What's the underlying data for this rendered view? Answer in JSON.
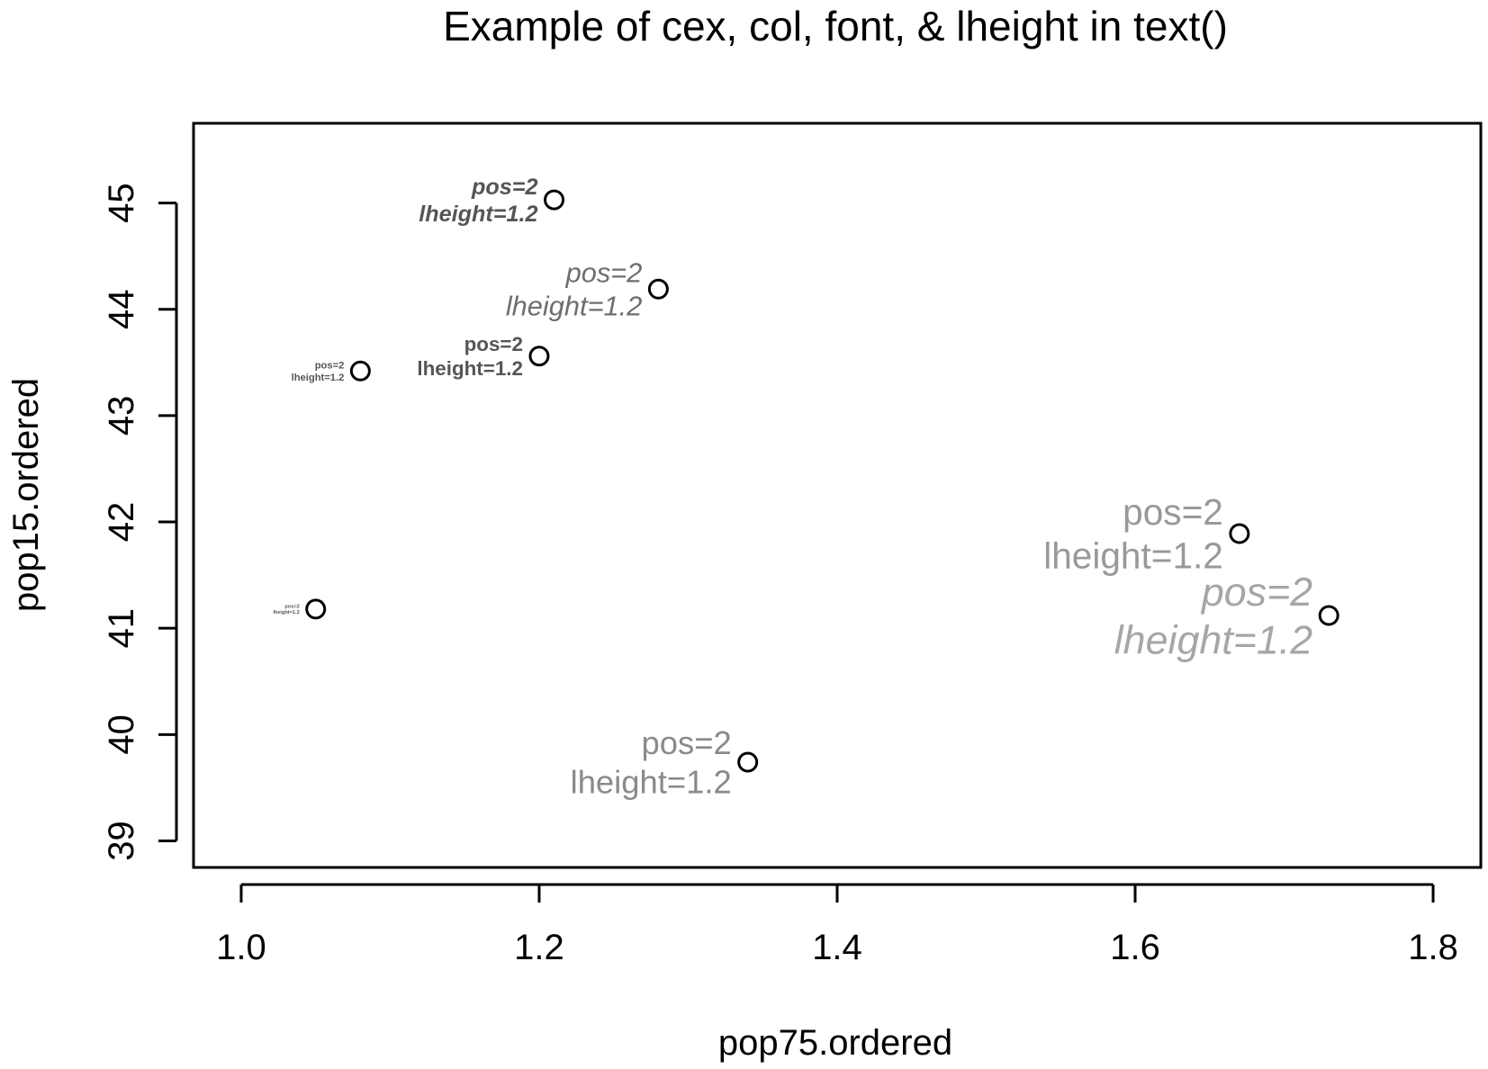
{
  "chart_data": {
    "type": "scatter",
    "title": "Example of cex, col, font, & lheight in text()",
    "xlabel": "pop75.ordered",
    "ylabel": "pop15.ordered",
    "xlim": [
      0.968,
      1.832
    ],
    "ylim": [
      38.75,
      45.75
    ],
    "x_ticks": [
      1.0,
      1.2,
      1.4,
      1.6,
      1.8
    ],
    "x_tick_labels": [
      "1.0",
      "1.2",
      "1.4",
      "1.6",
      "1.8"
    ],
    "y_ticks": [
      39,
      40,
      41,
      42,
      43,
      44,
      45
    ],
    "y_tick_labels": [
      "39",
      "40",
      "41",
      "42",
      "43",
      "44",
      "45"
    ],
    "grid": false,
    "points": [
      {
        "x": 1.05,
        "y": 41.18,
        "label_lines": [
          "pos=2",
          "lheight=1.2"
        ],
        "cex": 0.2,
        "color": "#555555",
        "font": "bold"
      },
      {
        "x": 1.08,
        "y": 43.42,
        "label_lines": [
          "pos=2",
          "lheight=1.2"
        ],
        "cex": 0.4,
        "color": "#555555",
        "font": "bold"
      },
      {
        "x": 1.2,
        "y": 43.56,
        "label_lines": [
          "pos=2",
          "lheight=1.2"
        ],
        "cex": 0.8,
        "color": "#555555",
        "font": "bold"
      },
      {
        "x": 1.21,
        "y": 45.03,
        "label_lines": [
          "pos=2",
          "lheight=1.2"
        ],
        "cex": 0.9,
        "color": "#555555",
        "font": "bold-italic"
      },
      {
        "x": 1.28,
        "y": 44.19,
        "label_lines": [
          "pos=2",
          "lheight=1.2"
        ],
        "cex": 1.1,
        "color": "#6e6e6e",
        "font": "italic"
      },
      {
        "x": 1.34,
        "y": 39.74,
        "label_lines": [
          "pos=2",
          "lheight=1.2"
        ],
        "cex": 1.3,
        "color": "#8a8a8a",
        "font": "plain"
      },
      {
        "x": 1.67,
        "y": 41.89,
        "label_lines": [
          "pos=2",
          "lheight=1.2"
        ],
        "cex": 1.45,
        "color": "#999999",
        "font": "plain"
      },
      {
        "x": 1.73,
        "y": 41.12,
        "label_lines": [
          "pos=2",
          "lheight=1.2"
        ],
        "cex": 1.6,
        "color": "#a6a6a6",
        "font": "italic"
      }
    ]
  }
}
